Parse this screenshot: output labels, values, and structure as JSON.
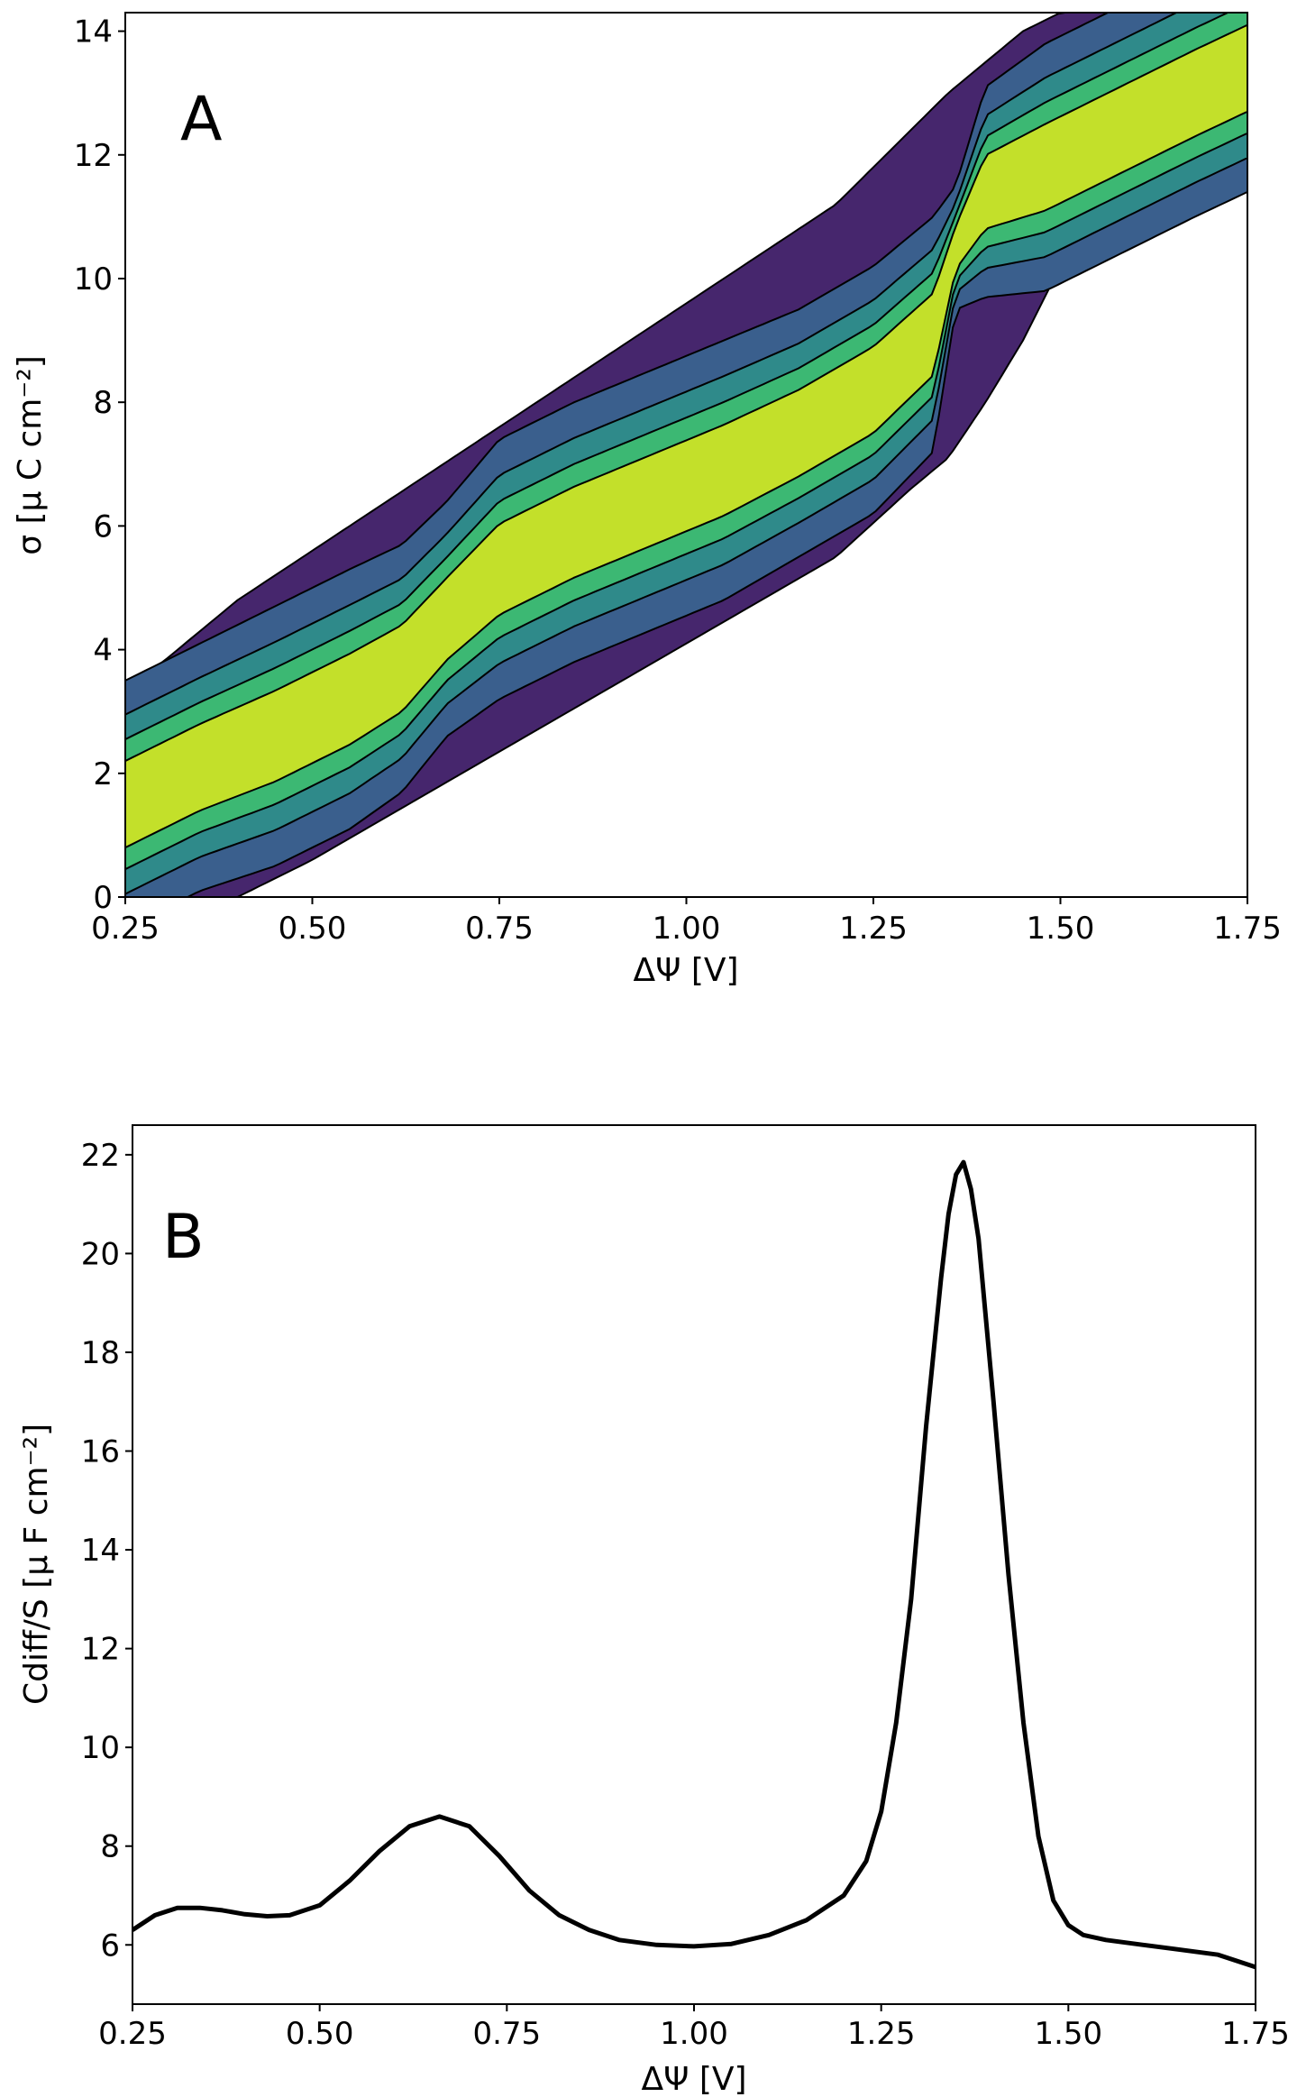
{
  "chart_data": [
    {
      "panel_label": "A",
      "type": "heatmap",
      "plot_style": "filled contour",
      "xlabel": "ΔΨ [V]",
      "ylabel": "σ [μ C cm⁻²]",
      "xlim": [
        0.25,
        1.75
      ],
      "ylim": [
        0,
        14.3
      ],
      "x_ticks": [
        "0.25",
        "0.50",
        "0.75",
        "1.00",
        "1.25",
        "1.50",
        "1.75"
      ],
      "y_ticks": [
        "0",
        "2",
        "4",
        "6",
        "8",
        "10",
        "12",
        "14"
      ],
      "grid": false,
      "legend": "none",
      "colormap_levels": [
        "#46266d",
        "#3a5f8d",
        "#2f8a8a",
        "#3cb873",
        "#c3e02a"
      ],
      "contour_line_color": "#000000",
      "ridge": {
        "x": [
          0.25,
          0.35,
          0.45,
          0.55,
          0.62,
          0.68,
          0.75,
          0.85,
          0.95,
          1.05,
          1.15,
          1.25,
          1.33,
          1.36,
          1.4,
          1.48,
          1.58,
          1.68,
          1.75
        ],
        "sigma": [
          1.5,
          2.1,
          2.6,
          3.2,
          3.7,
          4.5,
          5.3,
          5.9,
          6.4,
          6.9,
          7.5,
          8.2,
          9.1,
          10.5,
          11.4,
          11.8,
          12.4,
          13.0,
          13.4
        ],
        "width": [
          1.0,
          1.0,
          1.05,
          1.05,
          1.0,
          0.95,
          1.05,
          1.05,
          1.05,
          1.05,
          1.0,
          1.0,
          0.95,
          0.5,
          0.85,
          1.0,
          1.0,
          1.0,
          1.0
        ]
      },
      "envelope": {
        "x": [
          0.25,
          0.3,
          0.4,
          0.5,
          0.6,
          0.7,
          0.8,
          0.9,
          1.0,
          1.1,
          1.2,
          1.3,
          1.35,
          1.4,
          1.45,
          1.5,
          1.6,
          1.7,
          1.75
        ],
        "upper": [
          3.4,
          3.8,
          4.8,
          5.6,
          6.4,
          7.2,
          8.0,
          8.8,
          9.6,
          10.4,
          11.2,
          12.4,
          13.0,
          13.5,
          14.0,
          14.3,
          14.3,
          14.3,
          14.3
        ],
        "lower": [
          0.0,
          0.0,
          0.0,
          0.6,
          1.3,
          2.0,
          2.7,
          3.4,
          4.1,
          4.8,
          5.5,
          6.6,
          7.1,
          8.0,
          9.0,
          10.2,
          11.0,
          11.6,
          11.7
        ]
      }
    },
    {
      "panel_label": "B",
      "type": "line",
      "xlabel": "ΔΨ [V]",
      "ylabel": "Cdiff/S [μ F cm⁻²]",
      "xlim": [
        0.25,
        1.75
      ],
      "ylim": [
        4.8,
        22.6
      ],
      "x_ticks": [
        "0.25",
        "0.50",
        "0.75",
        "1.00",
        "1.25",
        "1.50",
        "1.75"
      ],
      "y_ticks": [
        "6",
        "8",
        "10",
        "12",
        "14",
        "16",
        "18",
        "20",
        "22"
      ],
      "grid": false,
      "legend": "none",
      "line_color": "#000000",
      "series": [
        {
          "x": [
            0.25,
            0.28,
            0.31,
            0.34,
            0.37,
            0.4,
            0.43,
            0.46,
            0.5,
            0.54,
            0.58,
            0.62,
            0.66,
            0.7,
            0.74,
            0.78,
            0.82,
            0.86,
            0.9,
            0.95,
            1.0,
            1.05,
            1.1,
            1.15,
            1.2,
            1.23,
            1.25,
            1.27,
            1.29,
            1.31,
            1.33,
            1.34,
            1.35,
            1.36,
            1.37,
            1.38,
            1.4,
            1.42,
            1.44,
            1.46,
            1.48,
            1.5,
            1.52,
            1.55,
            1.6,
            1.65,
            1.7,
            1.75
          ],
          "y": [
            6.3,
            6.6,
            6.75,
            6.75,
            6.7,
            6.62,
            6.58,
            6.6,
            6.8,
            7.3,
            7.9,
            8.4,
            8.6,
            8.4,
            7.8,
            7.1,
            6.6,
            6.3,
            6.1,
            6.0,
            5.97,
            6.02,
            6.2,
            6.5,
            7.0,
            7.7,
            8.7,
            10.5,
            13.0,
            16.5,
            19.5,
            20.8,
            21.6,
            21.85,
            21.3,
            20.3,
            17.0,
            13.5,
            10.5,
            8.2,
            6.9,
            6.4,
            6.2,
            6.1,
            6.0,
            5.9,
            5.8,
            5.55
          ]
        }
      ]
    }
  ]
}
